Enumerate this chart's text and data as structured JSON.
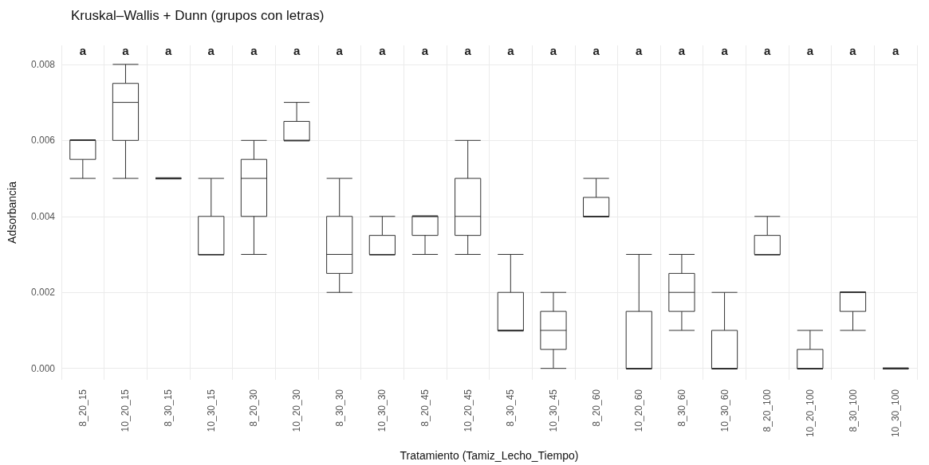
{
  "chart_data": {
    "type": "box",
    "title": "Kruskal–Wallis + Dunn (grupos con letras)",
    "xlabel": "Tratamiento (Tamiz_Lecho_Tiempo)",
    "ylabel": "Adsorbancia",
    "categories": [
      "8_20_15",
      "10_20_15",
      "8_30_15",
      "10_30_15",
      "8_20_30",
      "10_20_30",
      "8_30_30",
      "10_30_30",
      "8_20_45",
      "10_20_45",
      "8_30_45",
      "10_30_45",
      "8_20_60",
      "10_20_60",
      "8_30_60",
      "10_30_60",
      "8_20_100",
      "10_20_100",
      "8_30_100",
      "10_30_100"
    ],
    "boxes": [
      {
        "low": 0.005,
        "q1": 0.0055,
        "median": 0.006,
        "q3": 0.006,
        "high": 0.006
      },
      {
        "low": 0.005,
        "q1": 0.006,
        "median": 0.007,
        "q3": 0.0075,
        "high": 0.008
      },
      {
        "low": 0.005,
        "q1": 0.005,
        "median": 0.005,
        "q3": 0.005,
        "high": 0.005
      },
      {
        "low": 0.003,
        "q1": 0.003,
        "median": 0.003,
        "q3": 0.004,
        "high": 0.005
      },
      {
        "low": 0.003,
        "q1": 0.004,
        "median": 0.005,
        "q3": 0.0055,
        "high": 0.006
      },
      {
        "low": 0.006,
        "q1": 0.006,
        "median": 0.006,
        "q3": 0.0065,
        "high": 0.007
      },
      {
        "low": 0.002,
        "q1": 0.0025,
        "median": 0.003,
        "q3": 0.004,
        "high": 0.005
      },
      {
        "low": 0.003,
        "q1": 0.003,
        "median": 0.003,
        "q3": 0.0035,
        "high": 0.004
      },
      {
        "low": 0.003,
        "q1": 0.0035,
        "median": 0.004,
        "q3": 0.004,
        "high": 0.004
      },
      {
        "low": 0.003,
        "q1": 0.0035,
        "median": 0.004,
        "q3": 0.005,
        "high": 0.006
      },
      {
        "low": 0.001,
        "q1": 0.001,
        "median": 0.001,
        "q3": 0.002,
        "high": 0.003
      },
      {
        "low": 0,
        "q1": 0.0005,
        "median": 0.001,
        "q3": 0.0015,
        "high": 0.002
      },
      {
        "low": 0.004,
        "q1": 0.004,
        "median": 0.004,
        "q3": 0.0045,
        "high": 0.005
      },
      {
        "low": 0,
        "q1": 0,
        "median": 0,
        "q3": 0.0015,
        "high": 0.003
      },
      {
        "low": 0.001,
        "q1": 0.0015,
        "median": 0.002,
        "q3": 0.0025,
        "high": 0.003
      },
      {
        "low": 0,
        "q1": 0,
        "median": 0,
        "q3": 0.001,
        "high": 0.002
      },
      {
        "low": 0.003,
        "q1": 0.003,
        "median": 0.003,
        "q3": 0.0035,
        "high": 0.004
      },
      {
        "low": 0,
        "q1": 0,
        "median": 0,
        "q3": 0.0005,
        "high": 0.001
      },
      {
        "low": 0.001,
        "q1": 0.0015,
        "median": 0.002,
        "q3": 0.002,
        "high": 0.002
      },
      {
        "low": 0,
        "q1": 0,
        "median": 0,
        "q3": 0,
        "high": 0
      }
    ],
    "color": "#333333",
    "ylim": [
      -0.0003,
      0.0085
    ],
    "yticks": [
      {
        "value": 0,
        "label": "0.000"
      },
      0.002,
      0.004,
      0.006,
      0.008
    ],
    "grid": true,
    "annotations": [
      "a",
      "a",
      "a",
      "a",
      "a",
      "a",
      "a",
      "a",
      "a",
      "a",
      "a",
      "a",
      "a",
      "a",
      "a",
      "a",
      "a",
      "a",
      "a",
      "a"
    ]
  }
}
